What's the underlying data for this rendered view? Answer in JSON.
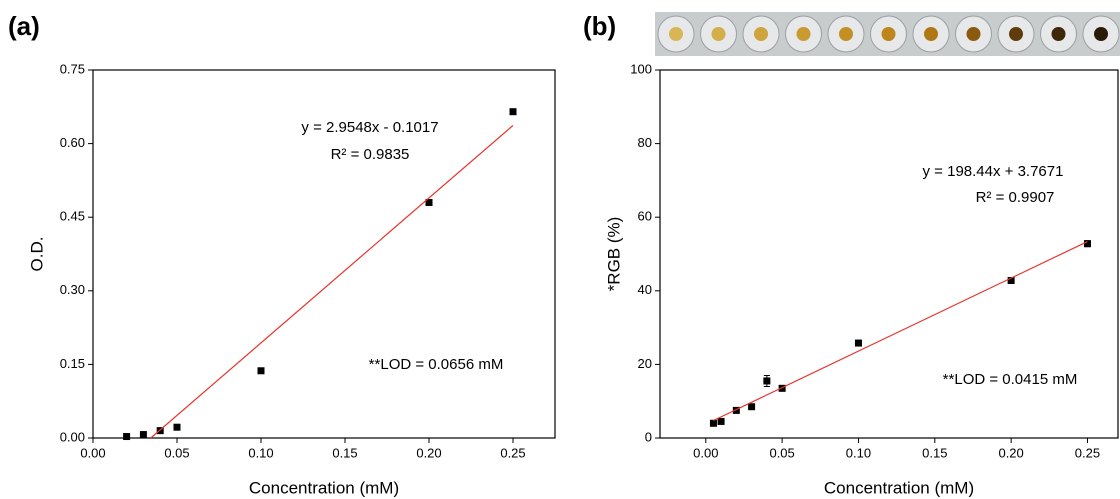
{
  "chart_data": [
    {
      "type": "scatter",
      "panel_label": "(a)",
      "x_label": "Concentration (mM)",
      "y_label": "O.D.",
      "xlim": [
        0,
        0.275
      ],
      "ylim": [
        0,
        0.75
      ],
      "xticks": [
        {
          "value": 0,
          "label": "0.00"
        },
        0.05,
        {
          "value": 0.1,
          "label": "0.10"
        },
        0.15,
        {
          "value": 0.2,
          "label": "0.20"
        },
        0.25
      ],
      "yticks": [
        {
          "value": 0,
          "label": "0.00"
        },
        0.15,
        {
          "value": 0.3,
          "label": "0.30"
        },
        0.45,
        {
          "value": 0.6,
          "label": "0.60"
        },
        0.75
      ],
      "equation": "y = 2.9548x - 0.1017",
      "r_squared": "R² = 0.9835",
      "lod": "**LOD = 0.0656 mM",
      "series": [
        {
          "style": "markers",
          "color": "#000000",
          "x": [
            0.02,
            0.03,
            0.04,
            0.05,
            0.1,
            0.2,
            0.25
          ],
          "values": [
            0.003,
            0.007,
            0.015,
            0.022,
            0.137,
            0.48,
            0.665
          ]
        },
        {
          "style": "line",
          "color": "#e8342c",
          "x": [
            0.0344,
            0.25
          ],
          "values": [
            0,
            0.637
          ]
        }
      ]
    },
    {
      "type": "scatter",
      "panel_label": "(b)",
      "x_label": "Concentration (mM)",
      "y_label": "*RGB (%)",
      "xlim": [
        -0.03,
        0.27
      ],
      "ylim": [
        0,
        100
      ],
      "xticks": [
        {
          "value": 0,
          "label": "0.00"
        },
        0.05,
        {
          "value": 0.1,
          "label": "0.10"
        },
        0.15,
        {
          "value": 0.2,
          "label": "0.20"
        },
        0.25
      ],
      "yticks": [
        0,
        20,
        40,
        60,
        80,
        100
      ],
      "equation": "y = 198.44x + 3.7671",
      "r_squared": "R² = 0.9907",
      "lod": "**LOD = 0.0415 mM",
      "series": [
        {
          "style": "markers",
          "color": "#000000",
          "x": [
            0.005,
            0.01,
            0.02,
            0.03,
            0.04,
            0.05,
            0.1,
            0.2,
            0.25
          ],
          "values": [
            4.0,
            4.5,
            7.5,
            8.5,
            15.5,
            13.5,
            25.8,
            42.8,
            52.8
          ],
          "errors": [
            0.5,
            0.5,
            0.6,
            0.6,
            1.5,
            0.6,
            0.6,
            0.5,
            0.8
          ]
        },
        {
          "style": "line",
          "color": "#e8342c",
          "x": [
            0.005,
            0.25
          ],
          "values": [
            4.76,
            53.38
          ]
        }
      ]
    }
  ]
}
